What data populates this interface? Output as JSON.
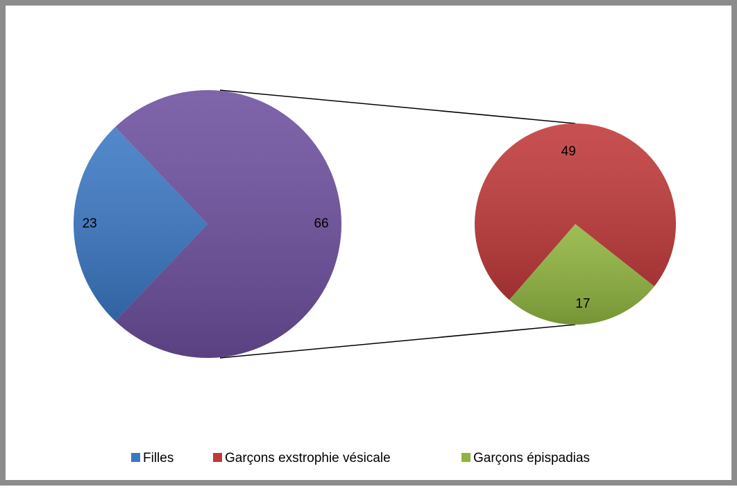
{
  "chart_data": {
    "type": "pie",
    "main": {
      "categories": [
        "Filles",
        null
      ],
      "values": [
        23,
        66
      ],
      "colors": [
        "#3b78c4",
        "#6d4f9e"
      ]
    },
    "secondary": {
      "categories": [
        "Garçons exstrophie vésicale",
        "Garçons épispadias"
      ],
      "values": [
        49,
        17
      ],
      "colors": [
        "#c0393a",
        "#8fb43f"
      ]
    },
    "legend": "bottom"
  }
}
